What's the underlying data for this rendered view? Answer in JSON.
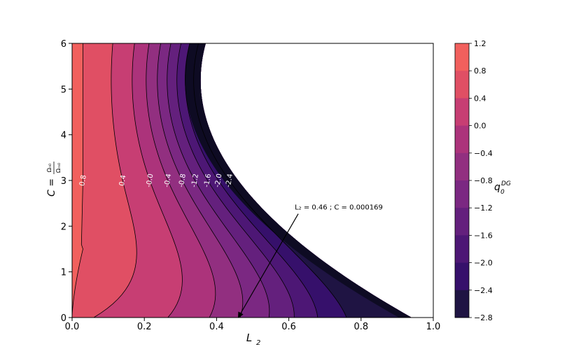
{
  "chart_data": {
    "type": "contour",
    "title": "",
    "xlabel": "L",
    "xlabel_sub": "2",
    "ylabel_main": "C = ",
    "ylabel_frac_num": "Ωₙ₀",
    "ylabel_frac_den": "Ωₘ₀",
    "xlim": [
      0.0,
      1.0
    ],
    "ylim": [
      0,
      6
    ],
    "xticks": [
      "0.0",
      "0.2",
      "0.4",
      "0.6",
      "0.8",
      "1.0"
    ],
    "yticks": [
      "0",
      "1",
      "2",
      "3",
      "4",
      "5",
      "6"
    ],
    "colormap": "magma",
    "colorbar": {
      "label_main": "q",
      "label_sub": "0",
      "label_sup": "DG",
      "levels": [
        -2.8,
        -2.4,
        -2.0,
        -1.6,
        -1.2,
        -0.8,
        -0.4,
        0.0,
        0.4,
        0.8,
        1.2
      ],
      "ticklabels": [
        "1.2",
        "0.8",
        "0.4",
        "0.0",
        "−0.4",
        "−0.8",
        "−1.2",
        "−1.6",
        "−2.0",
        "−2.4",
        "−2.8"
      ],
      "band_colors": [
        "#0e0b23",
        "#1f1443",
        "#36106b",
        "#4d1775",
        "#64207d",
        "#7b2882",
        "#922f80",
        "#ac337b",
        "#c73e73",
        "#e04f64",
        "#f1605d"
      ]
    },
    "contour_lines": [
      {
        "level": 0.8,
        "label": "0.8",
        "x_at_C3": 0.03,
        "x_at_C0": 0.0,
        "y_at_x0": 1.5
      },
      {
        "level": 0.4,
        "label": "0.4",
        "x_at_C3": 0.14,
        "x_at_C0": 0.06
      },
      {
        "level": 0.0,
        "label": "-0.0",
        "x_at_C3": 0.215,
        "x_at_C0": 0.265
      },
      {
        "level": -0.4,
        "label": "-0.4",
        "x_at_C3": 0.265,
        "x_at_C0": 0.38
      },
      {
        "level": -0.8,
        "label": "-0.8",
        "x_at_C3": 0.305,
        "x_at_C0": 0.465
      },
      {
        "level": -1.2,
        "label": "-1.2",
        "x_at_C3": 0.34,
        "x_at_C0": 0.545
      },
      {
        "level": -1.6,
        "label": "-1.6",
        "x_at_C3": 0.375,
        "x_at_C0": 0.615
      },
      {
        "level": -2.0,
        "label": "-2.0",
        "x_at_C3": 0.405,
        "x_at_C0": 0.68
      },
      {
        "level": -2.4,
        "label": "-2.4",
        "x_at_C3": 0.435,
        "x_at_C0": 0.76
      }
    ],
    "boundary": {
      "x_at_C6": 0.37,
      "x_at_C3": 0.46,
      "x_at_C0": 0.94
    },
    "annotation": {
      "text": "L₂ = 0.46 ; C = 0.000169",
      "point": {
        "x": 0.46,
        "y": 0.0
      },
      "text_pos": {
        "x": 0.63,
        "y": 2.3
      }
    }
  }
}
